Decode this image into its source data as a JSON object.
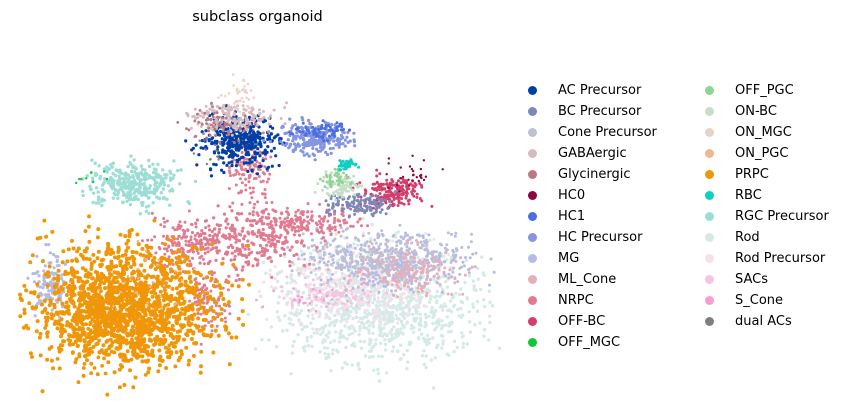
{
  "chart_data": {
    "type": "scatter",
    "title": "subclass organoid",
    "xlabel": "",
    "ylabel": "",
    "axes_visible": false,
    "grid": false,
    "legend_placement": "right, two columns",
    "series": [
      {
        "name": "AC Precursor",
        "color": "#023fa5"
      },
      {
        "name": "BC Precursor",
        "color": "#7d87b9"
      },
      {
        "name": "Cone Precursor",
        "color": "#bec1d4"
      },
      {
        "name": "GABAergic",
        "color": "#d6bcc0"
      },
      {
        "name": "Glycinergic",
        "color": "#bb7784"
      },
      {
        "name": "HC0",
        "color": "#8e063b"
      },
      {
        "name": "HC1",
        "color": "#4a6fe3"
      },
      {
        "name": "HC Precursor",
        "color": "#8595e1"
      },
      {
        "name": "MG",
        "color": "#b5bbe3"
      },
      {
        "name": "ML_Cone",
        "color": "#e6afb9"
      },
      {
        "name": "NRPC",
        "color": "#e07b91"
      },
      {
        "name": "OFF-BC",
        "color": "#d33f6a"
      },
      {
        "name": "OFF_MGC",
        "color": "#11c638"
      },
      {
        "name": "OFF_PGC",
        "color": "#8dd593"
      },
      {
        "name": "ON-BC",
        "color": "#c6dec7"
      },
      {
        "name": "ON_MGC",
        "color": "#ead3c6"
      },
      {
        "name": "ON_PGC",
        "color": "#f0b98d"
      },
      {
        "name": "PRPC",
        "color": "#ef9708"
      },
      {
        "name": "RBC",
        "color": "#0fcfc0"
      },
      {
        "name": "RGC Precursor",
        "color": "#9cded6"
      },
      {
        "name": "Rod",
        "color": "#d5eae7"
      },
      {
        "name": "Rod Precursor",
        "color": "#f3e1eb"
      },
      {
        "name": "SACs",
        "color": "#f6c4e1"
      },
      {
        "name": "S_Cone",
        "color": "#f79cd4"
      },
      {
        "name": "dual ACs",
        "color": "#7f7f7f"
      }
    ]
  }
}
